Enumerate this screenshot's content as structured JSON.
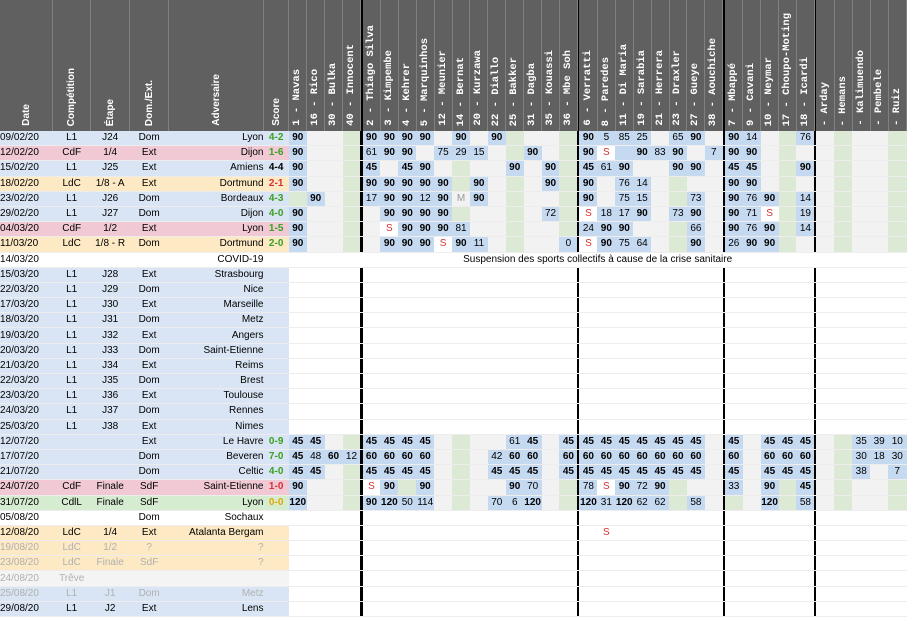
{
  "headers": {
    "date": "Date",
    "competition": "Compétition",
    "etape": "Étape",
    "domext": "Dom./Ext.",
    "adversaire": "Adversaire",
    "score": "Score"
  },
  "players": [
    "1 - Navas",
    "16 - Rico",
    "30 - Bulka",
    "40 - Innocent",
    "2 - Thiago Silva",
    "3 - Kimpembe",
    "4 - Kehrer",
    "5 - Marquinhos",
    "12 - Meunier",
    "14 - Bernat",
    "20 - Kurzawa",
    "22 - Diallo",
    "25 - Bakker",
    "31 - Dagba",
    "35 - Kouassi",
    "36 - Mbe Soh",
    "6 - Verratti",
    "8 - Paredes",
    "11 - Di Maria",
    "19 - Sarabia",
    "21 - Herrera",
    "23 - Draxler",
    "27 - Gueye",
    "38 - Aouchiche",
    "7 - Mbappé",
    "9 - Cavani",
    "10 - Neymar",
    "17 - Choupo-Moting",
    "18 - Icardi",
    "- Arday",
    "- Hemans",
    "- Kalimuendo",
    "- Pembele",
    "- Ruiz"
  ],
  "suspension_note": "Suspension des sports collectifs à cause de la crise sanitaire",
  "rows": [
    {
      "type": "l1",
      "date": "09/02/20",
      "comp": "L1",
      "etape": "J24",
      "de": "Dom",
      "adv": "Lyon",
      "score": "4-2",
      "res": "w",
      "cells": {
        "0": "90",
        "4": "90",
        "5": "90",
        "6": "90",
        "7": "90",
        "9": "90",
        "11": "90",
        "16": "90",
        "17": "5",
        "18": "85",
        "19": "25",
        "21": "65",
        "22": "90",
        "24": "90",
        "25": "14",
        "28": "76"
      }
    },
    {
      "type": "cdf",
      "date": "12/02/20",
      "comp": "CdF",
      "etape": "1/4",
      "de": "Ext",
      "adv": "Dijon",
      "score": "1-6",
      "res": "w",
      "cells": {
        "0": "90",
        "4": "61",
        "5": "90",
        "6": "90",
        "8": "75",
        "9": "29",
        "10": "15",
        "13": "90",
        "16": "90",
        "17": "S",
        "18": "",
        "19": "90",
        "20": "83",
        "21": "90",
        "23": "7",
        "24": "90",
        "25": "90"
      }
    },
    {
      "type": "l1",
      "date": "15/02/20",
      "comp": "L1",
      "etape": "J25",
      "de": "Ext",
      "adv": "Amiens",
      "score": "4-4",
      "res": "n",
      "cells": {
        "0": "90",
        "4": "45",
        "6": "45",
        "7": "90",
        "12": "90",
        "14": "90",
        "16": "45",
        "17": "61",
        "18": "90",
        "21": "90",
        "22": "90",
        "24": "45",
        "25": "45",
        "28": "90"
      }
    },
    {
      "type": "ldc",
      "date": "18/02/20",
      "comp": "LdC",
      "etape": "1/8 - A",
      "de": "Ext",
      "adv": "Dortmund",
      "score": "2-1",
      "res": "l",
      "cells": {
        "0": "90",
        "4": "90",
        "5": "90",
        "6": "90",
        "7": "90",
        "8": "90",
        "10": "90",
        "14": "90",
        "16": "90",
        "18": "76",
        "19": "14",
        "24": "90",
        "25": "90"
      }
    },
    {
      "type": "l1",
      "date": "23/02/20",
      "comp": "L1",
      "etape": "J26",
      "de": "Dom",
      "adv": "Bordeaux",
      "score": "4-3",
      "res": "w",
      "cells": {
        "1": "90",
        "4": "17",
        "5": "90",
        "6": "90",
        "7": "12",
        "8": "90",
        "9": "M",
        "10": "90",
        "16": "90",
        "18": "75",
        "19": "15",
        "22": "73",
        "24": "90",
        "25": "76",
        "26": "90",
        "28": "14"
      }
    },
    {
      "type": "l1",
      "date": "29/02/20",
      "comp": "L1",
      "etape": "J27",
      "de": "Dom",
      "adv": "Dijon",
      "score": "4-0",
      "res": "w",
      "cells": {
        "0": "90",
        "5": "90",
        "6": "90",
        "7": "90",
        "8": "90",
        "14": "72",
        "16": "S",
        "17": "18",
        "18": "17",
        "19": "90",
        "21": "73",
        "22": "90",
        "24": "90",
        "25": "71",
        "26": "S",
        "28": "19"
      }
    },
    {
      "type": "cdf",
      "date": "04/03/20",
      "comp": "CdF",
      "etape": "1/2",
      "de": "Ext",
      "adv": "Lyon",
      "score": "1-5",
      "res": "w",
      "cells": {
        "0": "90",
        "5": "S",
        "6": "90",
        "7": "90",
        "8": "90",
        "9": "81",
        "16": "24",
        "17": "90",
        "18": "90",
        "22": "66",
        "24": "90",
        "25": "76",
        "26": "90",
        "28": "14"
      }
    },
    {
      "type": "ldc",
      "date": "11/03/20",
      "comp": "LdC",
      "etape": "1/8 - R",
      "de": "Dom",
      "adv": "Dortmund",
      "score": "2-0",
      "res": "w",
      "cells": {
        "0": "90",
        "5": "90",
        "6": "90",
        "7": "90",
        "8": "S",
        "9": "90",
        "10": "11",
        "15": "0",
        "16": "S",
        "17": "90",
        "18": "75",
        "19": "64",
        "22": "90",
        "24": "26",
        "25": "90",
        "26": "90"
      }
    },
    {
      "type": "covid",
      "date": "14/03/20",
      "comp": "",
      "etape": "",
      "de": "",
      "adv": "COVID-19",
      "score": "",
      "res": "n",
      "cells": {}
    },
    {
      "type": "l1",
      "grey": false,
      "date": "15/03/20",
      "comp": "L1",
      "etape": "J28",
      "de": "Ext",
      "adv": "Strasbourg",
      "score": "",
      "res": "n",
      "cells": {}
    },
    {
      "type": "l1",
      "date": "22/03/20",
      "comp": "L1",
      "etape": "J29",
      "de": "Dom",
      "adv": "Nice",
      "score": "",
      "res": "n",
      "cells": {}
    },
    {
      "type": "l1",
      "date": "17/03/20",
      "comp": "L1",
      "etape": "J30",
      "de": "Ext",
      "adv": "Marseille",
      "score": "",
      "res": "n",
      "cells": {}
    },
    {
      "type": "l1",
      "date": "18/03/20",
      "comp": "L1",
      "etape": "J31",
      "de": "Dom",
      "adv": "Metz",
      "score": "",
      "res": "n",
      "cells": {}
    },
    {
      "type": "l1",
      "date": "19/03/20",
      "comp": "L1",
      "etape": "J32",
      "de": "Ext",
      "adv": "Angers",
      "score": "",
      "res": "n",
      "cells": {}
    },
    {
      "type": "l1",
      "date": "20/03/20",
      "comp": "L1",
      "etape": "J33",
      "de": "Dom",
      "adv": "Saint-Etienne",
      "score": "",
      "res": "n",
      "cells": {}
    },
    {
      "type": "l1",
      "date": "21/03/20",
      "comp": "L1",
      "etape": "J34",
      "de": "Ext",
      "adv": "Reims",
      "score": "",
      "res": "n",
      "cells": {}
    },
    {
      "type": "l1",
      "date": "22/03/20",
      "comp": "L1",
      "etape": "J35",
      "de": "Dom",
      "adv": "Brest",
      "score": "",
      "res": "n",
      "cells": {}
    },
    {
      "type": "l1",
      "date": "23/03/20",
      "comp": "L1",
      "etape": "J36",
      "de": "Ext",
      "adv": "Toulouse",
      "score": "",
      "res": "n",
      "cells": {}
    },
    {
      "type": "l1",
      "date": "24/03/20",
      "comp": "L1",
      "etape": "J37",
      "de": "Dom",
      "adv": "Rennes",
      "score": "",
      "res": "n",
      "cells": {}
    },
    {
      "type": "l1",
      "date": "25/03/20",
      "comp": "L1",
      "etape": "J38",
      "de": "Ext",
      "adv": "Nimes",
      "score": "",
      "res": "n",
      "cells": {}
    },
    {
      "type": "l1",
      "date": "12/07/20",
      "comp": "",
      "etape": "",
      "de": "Ext",
      "adv": "Le Havre",
      "score": "0-9",
      "res": "w",
      "cells": {
        "0": "45",
        "1": "45",
        "4": "45",
        "5": "45",
        "6": "45",
        "7": "45",
        "12": "61",
        "13": "45",
        "15": "45",
        "16": "45",
        "17": "45",
        "18": "45",
        "19": "45",
        "20": "45",
        "21": "45",
        "22": "45",
        "24": "45",
        "26": "45",
        "27": "45",
        "28": "45",
        "31": "35",
        "32": "39",
        "33": "10"
      }
    },
    {
      "type": "l1",
      "date": "17/07/20",
      "comp": "",
      "etape": "",
      "de": "Dom",
      "adv": "Beveren",
      "score": "7-0",
      "res": "w",
      "cells": {
        "0": "45",
        "1": "48",
        "2": "60",
        "3": "12",
        "4": "60",
        "5": "60",
        "6": "60",
        "7": "60",
        "11": "42",
        "12": "60",
        "13": "60",
        "15": "60",
        "16": "60",
        "17": "60",
        "18": "60",
        "19": "60",
        "20": "60",
        "21": "60",
        "22": "60",
        "24": "60",
        "26": "60",
        "27": "60",
        "28": "60",
        "31": "30",
        "32": "18",
        "33": "30"
      }
    },
    {
      "type": "l1",
      "date": "21/07/20",
      "comp": "",
      "etape": "",
      "de": "Dom",
      "adv": "Celtic",
      "score": "4-0",
      "res": "w",
      "cells": {
        "0": "45",
        "1": "45",
        "4": "45",
        "5": "45",
        "6": "45",
        "7": "45",
        "11": "45",
        "12": "45",
        "13": "45",
        "15": "45",
        "16": "45",
        "17": "45",
        "18": "45",
        "19": "45",
        "20": "45",
        "21": "45",
        "22": "45",
        "24": "45",
        "26": "45",
        "27": "45",
        "28": "45",
        "31": "38",
        "33": "7"
      }
    },
    {
      "type": "cdf",
      "date": "24/07/20",
      "comp": "CdF",
      "etape": "Finale",
      "de": "SdF",
      "adv": "Saint-Etienne",
      "score": "1-0",
      "res": "l",
      "cells": {
        "0": "90",
        "4": "S",
        "5": "90",
        "7": "90",
        "12": "90",
        "13": "70",
        "16": "78",
        "17": "S",
        "18": "90",
        "19": "72",
        "20": "90",
        "24": "33",
        "26": "90",
        "28": "45"
      }
    },
    {
      "type": "cdl",
      "date": "31/07/20",
      "comp": "CdlL",
      "etape": "Finale",
      "de": "SdF",
      "adv": "Lyon",
      "score": "0-0",
      "res": "d",
      "cells": {
        "0": "120",
        "4": "90",
        "5": "120",
        "6": "50",
        "7": "114",
        "11": "70",
        "12": "6",
        "13": "120",
        "16": "120",
        "17": "31",
        "18": "120",
        "19": "62",
        "20": "62",
        "22": "58",
        "26": "120",
        "28": "58"
      }
    },
    {
      "type": "blank",
      "date": "05/08/20",
      "comp": "",
      "etape": "",
      "de": "Dom",
      "adv": "Sochaux",
      "score": "",
      "res": "n",
      "cells": {}
    },
    {
      "type": "ldc",
      "date": "12/08/20",
      "comp": "LdC",
      "etape": "1/4",
      "de": "Ext",
      "adv": "Atalanta Bergam",
      "score": "",
      "res": "n",
      "cells": {
        "17": "S"
      }
    },
    {
      "type": "ldc",
      "grey": true,
      "date": "19/08/20",
      "comp": "LdC",
      "etape": "1/2",
      "de": "?",
      "adv": "?",
      "score": "",
      "res": "n",
      "cells": {}
    },
    {
      "type": "ldc",
      "grey": true,
      "date": "23/08/20",
      "comp": "LdC",
      "etape": "Finale",
      "de": "SdF",
      "adv": "?",
      "score": "",
      "res": "n",
      "cells": {}
    },
    {
      "type": "past",
      "grey": true,
      "date": "24/08/20",
      "comp": "Trêve",
      "etape": "",
      "de": "",
      "adv": "",
      "score": "",
      "res": "n",
      "cells": {}
    },
    {
      "type": "l1",
      "grey": true,
      "date": "25/08/20",
      "comp": "L1",
      "etape": "J1",
      "de": "Dom",
      "adv": "Metz",
      "score": "",
      "res": "n",
      "cells": {}
    },
    {
      "type": "l1",
      "date": "29/08/20",
      "comp": "L1",
      "etape": "J2",
      "de": "Ext",
      "adv": "Lens",
      "score": "",
      "res": "n",
      "cells": {}
    }
  ]
}
